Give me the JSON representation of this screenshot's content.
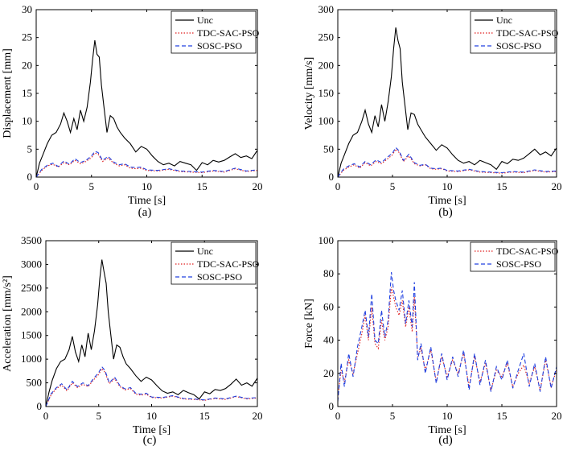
{
  "chart_data": [
    {
      "type": "line",
      "panel": "(a)",
      "xlabel": "Time [s]",
      "ylabel": "Displacement [mm]",
      "xlim": [
        0,
        20
      ],
      "ylim": [
        0,
        30
      ],
      "xticks": [
        "0",
        "5",
        "10",
        "15",
        "20"
      ],
      "yticks": [
        "0",
        "5",
        "10",
        "15",
        "20",
        "25",
        "30"
      ],
      "legend": "top-right",
      "series": [
        {
          "name": "Unc",
          "color": "#000000",
          "dash": "solid",
          "x": [
            0,
            0.3,
            0.6,
            1,
            1.4,
            1.8,
            2.2,
            2.5,
            2.8,
            3.1,
            3.4,
            3.7,
            4,
            4.3,
            4.6,
            4.9,
            5.1,
            5.3,
            5.5,
            5.7,
            5.9,
            6.1,
            6.4,
            6.7,
            7,
            7.3,
            7.6,
            8,
            8.5,
            9,
            9.5,
            10,
            10.5,
            11,
            11.5,
            12,
            12.5,
            13,
            13.5,
            14,
            14.5,
            15,
            15.5,
            16,
            16.5,
            17,
            17.5,
            18,
            18.5,
            19,
            19.5,
            20
          ],
          "y": [
            0,
            2.5,
            4,
            6,
            7.5,
            8,
            9.5,
            11.5,
            10,
            8,
            10.5,
            8.5,
            12,
            10,
            12.5,
            17,
            21,
            24.5,
            22,
            21.5,
            16.5,
            13,
            8,
            11,
            10.5,
            9,
            8,
            7,
            6,
            4.5,
            5.5,
            5,
            3.8,
            2.8,
            2.2,
            2.5,
            2,
            2.8,
            2.5,
            2.2,
            1.2,
            2.6,
            2.2,
            3,
            2.7,
            3,
            3.6,
            4.2,
            3.5,
            3.8,
            3.3,
            4.8
          ]
        },
        {
          "name": "TDC-SAC-PSO",
          "color": "#e02020",
          "dash": "dot",
          "x": [
            0,
            0.5,
            1,
            1.5,
            2,
            2.5,
            3,
            3.5,
            4,
            4.5,
            5,
            5.3,
            5.6,
            6,
            6.5,
            7,
            7.5,
            8,
            8.5,
            9,
            9.5,
            10,
            11,
            12,
            13,
            14,
            15,
            16,
            17,
            18,
            19,
            20
          ],
          "y": [
            0,
            1.2,
            2,
            2.3,
            1.8,
            2.6,
            2.2,
            3,
            2.4,
            2.8,
            3.5,
            4.3,
            4.1,
            2.8,
            3.4,
            2.5,
            2,
            2.2,
            1.6,
            1.5,
            1.6,
            1.2,
            1.1,
            1.4,
            1,
            0.9,
            0.8,
            1.1,
            0.9,
            1.5,
            1,
            1.2
          ]
        },
        {
          "name": "SOSC-PSO",
          "color": "#2040e0",
          "dash": "dash",
          "x": [
            0,
            0.5,
            1,
            1.5,
            2,
            2.5,
            3,
            3.5,
            4,
            4.5,
            5,
            5.3,
            5.6,
            6,
            6.5,
            7,
            7.5,
            8,
            8.5,
            9,
            9.5,
            10,
            11,
            12,
            13,
            14,
            15,
            16,
            17,
            18,
            19,
            20
          ],
          "y": [
            0,
            1.4,
            2.1,
            2.5,
            1.9,
            2.9,
            2.3,
            3.3,
            2.6,
            3,
            3.8,
            4.6,
            4.4,
            3,
            3.7,
            2.7,
            2.2,
            2.4,
            1.8,
            1.7,
            1.8,
            1.3,
            1.2,
            1.5,
            1.1,
            1,
            0.9,
            1.2,
            1,
            1.6,
            1.1,
            1.3
          ]
        }
      ]
    },
    {
      "type": "line",
      "panel": "(b)",
      "xlabel": "Time [s]",
      "ylabel": "Velocity [mm/s]",
      "xlim": [
        0,
        20
      ],
      "ylim": [
        0,
        300
      ],
      "xticks": [
        "0",
        "5",
        "10",
        "15",
        "20"
      ],
      "yticks": [
        "0",
        "50",
        "100",
        "150",
        "200",
        "250",
        "300"
      ],
      "legend": "top-right",
      "series": [
        {
          "name": "Unc",
          "color": "#000000",
          "dash": "solid",
          "x": [
            0,
            0.3,
            0.6,
            1,
            1.4,
            1.8,
            2.2,
            2.5,
            2.8,
            3.1,
            3.4,
            3.7,
            4,
            4.3,
            4.6,
            4.9,
            5.1,
            5.3,
            5.5,
            5.7,
            5.9,
            6.1,
            6.4,
            6.7,
            7,
            7.3,
            7.6,
            8,
            8.5,
            9,
            9.5,
            10,
            10.5,
            11,
            11.5,
            12,
            12.5,
            13,
            13.5,
            14,
            14.5,
            15,
            15.5,
            16,
            16.5,
            17,
            17.5,
            18,
            18.5,
            19,
            19.5,
            20
          ],
          "y": [
            0,
            25,
            40,
            60,
            75,
            80,
            100,
            120,
            95,
            80,
            110,
            90,
            130,
            100,
            135,
            180,
            230,
            268,
            245,
            230,
            170,
            135,
            85,
            115,
            112,
            95,
            85,
            72,
            60,
            48,
            58,
            52,
            40,
            30,
            25,
            28,
            22,
            30,
            26,
            22,
            14,
            28,
            24,
            32,
            30,
            34,
            42,
            50,
            40,
            45,
            38,
            52
          ]
        },
        {
          "name": "TDC-SAC-PSO",
          "color": "#e02020",
          "dash": "dot",
          "x": [
            0,
            0.5,
            1,
            1.5,
            2,
            2.5,
            3,
            3.5,
            4,
            4.5,
            5,
            5.3,
            5.6,
            6,
            6.5,
            7,
            7.5,
            8,
            8.5,
            9,
            9.5,
            10,
            11,
            12,
            13,
            14,
            15,
            16,
            17,
            18,
            19,
            20
          ],
          "y": [
            0,
            12,
            18,
            22,
            16,
            26,
            20,
            28,
            24,
            32,
            40,
            50,
            44,
            28,
            38,
            24,
            20,
            22,
            15,
            14,
            15,
            11,
            10,
            13,
            9,
            8,
            7,
            9,
            8,
            12,
            9,
            10
          ]
        },
        {
          "name": "SOSC-PSO",
          "color": "#2040e0",
          "dash": "dash",
          "x": [
            0,
            0.5,
            1,
            1.5,
            2,
            2.5,
            3,
            3.5,
            4,
            4.5,
            5,
            5.3,
            5.6,
            6,
            6.5,
            7,
            7.5,
            8,
            8.5,
            9,
            9.5,
            10,
            11,
            12,
            13,
            14,
            15,
            16,
            17,
            18,
            19,
            20
          ],
          "y": [
            0,
            14,
            20,
            24,
            18,
            28,
            22,
            31,
            26,
            35,
            43,
            53,
            47,
            30,
            41,
            26,
            21,
            23,
            16,
            15,
            16,
            12,
            11,
            14,
            10,
            9,
            8,
            10,
            9,
            13,
            10,
            11
          ]
        }
      ]
    },
    {
      "type": "line",
      "panel": "(c)",
      "xlabel": "Time [s]",
      "ylabel": "Acceleration [mm/s²]",
      "xlim": [
        0,
        20
      ],
      "ylim": [
        0,
        3500
      ],
      "xticks": [
        "0",
        "5",
        "10",
        "15",
        "20"
      ],
      "yticks": [
        "0",
        "500",
        "1000",
        "1500",
        "2000",
        "2500",
        "3000",
        "3500"
      ],
      "legend": "top-right",
      "series": [
        {
          "name": "Unc",
          "color": "#000000",
          "dash": "solid",
          "x": [
            0,
            0.3,
            0.6,
            1,
            1.4,
            1.8,
            2.2,
            2.5,
            2.8,
            3.1,
            3.4,
            3.7,
            4,
            4.3,
            4.6,
            4.9,
            5.1,
            5.3,
            5.5,
            5.7,
            5.9,
            6.1,
            6.4,
            6.7,
            7,
            7.3,
            7.6,
            8,
            8.5,
            9,
            9.5,
            10,
            10.5,
            11,
            11.5,
            12,
            12.5,
            13,
            13.5,
            14,
            14.5,
            15,
            15.5,
            16,
            16.5,
            17,
            17.5,
            18,
            18.5,
            19,
            19.5,
            20
          ],
          "y": [
            0,
            300,
            550,
            800,
            950,
            1000,
            1200,
            1480,
            1150,
            950,
            1300,
            1050,
            1550,
            1200,
            1600,
            2150,
            2700,
            3100,
            2850,
            2600,
            2000,
            1600,
            1000,
            1300,
            1250,
            1050,
            900,
            800,
            650,
            530,
            620,
            560,
            440,
            330,
            280,
            310,
            250,
            340,
            290,
            250,
            160,
            310,
            270,
            360,
            340,
            380,
            470,
            580,
            450,
            500,
            430,
            600
          ]
        },
        {
          "name": "TDC-SAC-PSO",
          "color": "#e02020",
          "dash": "dot",
          "x": [
            0,
            0.5,
            1,
            1.5,
            2,
            2.5,
            3,
            3.5,
            4,
            4.5,
            5,
            5.3,
            5.6,
            6,
            6.5,
            7,
            7.5,
            8,
            8.5,
            9,
            9.5,
            10,
            11,
            12,
            13,
            14,
            15,
            16,
            17,
            18,
            19,
            20
          ],
          "y": [
            0,
            250,
            380,
            450,
            330,
            500,
            400,
            470,
            420,
            560,
            680,
            800,
            720,
            480,
            590,
            420,
            350,
            380,
            260,
            240,
            260,
            190,
            180,
            220,
            160,
            150,
            130,
            170,
            150,
            210,
            160,
            180
          ]
        },
        {
          "name": "SOSC-PSO",
          "color": "#2040e0",
          "dash": "dash",
          "x": [
            0,
            0.5,
            1,
            1.5,
            2,
            2.5,
            3,
            3.5,
            4,
            4.5,
            5,
            5.3,
            5.6,
            6,
            6.5,
            7,
            7.5,
            8,
            8.5,
            9,
            9.5,
            10,
            11,
            12,
            13,
            14,
            15,
            16,
            17,
            18,
            19,
            20
          ],
          "y": [
            0,
            270,
            400,
            480,
            350,
            530,
            420,
            500,
            440,
            590,
            720,
            840,
            760,
            500,
            620,
            440,
            370,
            400,
            280,
            260,
            280,
            200,
            190,
            230,
            170,
            160,
            140,
            180,
            160,
            220,
            170,
            190
          ]
        }
      ]
    },
    {
      "type": "line",
      "panel": "(d)",
      "xlabel": "Time [s]",
      "ylabel": "Force [kN]",
      "xlim": [
        0,
        20
      ],
      "ylim": [
        0,
        100
      ],
      "xticks": [
        "0",
        "5",
        "10",
        "15",
        "20"
      ],
      "yticks": [
        "0",
        "20",
        "40",
        "60",
        "80",
        "100"
      ],
      "legend": "top-right",
      "series": [
        {
          "name": "TDC-SAC-PSO",
          "color": "#e02020",
          "dash": "dot",
          "x": [
            0,
            0.3,
            0.6,
            1,
            1.4,
            1.8,
            2.2,
            2.5,
            2.8,
            3.1,
            3.4,
            3.7,
            4,
            4.3,
            4.6,
            4.9,
            5.1,
            5.3,
            5.6,
            5.9,
            6.2,
            6.5,
            6.8,
            7,
            7.3,
            7.6,
            8,
            8.5,
            9,
            9.5,
            10,
            10.5,
            11,
            11.5,
            12,
            12.5,
            13,
            13.5,
            14,
            14.5,
            15,
            15.5,
            16,
            16.5,
            17,
            17.5,
            18,
            18.5,
            19,
            19.5,
            20
          ],
          "y": [
            5,
            22,
            15,
            28,
            20,
            32,
            44,
            55,
            40,
            60,
            38,
            35,
            52,
            40,
            48,
            72,
            66,
            60,
            55,
            64,
            48,
            60,
            45,
            66,
            30,
            35,
            22,
            34,
            15,
            30,
            18,
            28,
            20,
            32,
            12,
            30,
            15,
            26,
            10,
            22,
            18,
            26,
            12,
            20,
            25,
            14,
            24,
            10,
            28,
            12,
            22
          ]
        },
        {
          "name": "SOSC-PSO",
          "color": "#2040e0",
          "dash": "dash",
          "x": [
            0,
            0.3,
            0.6,
            1,
            1.4,
            1.8,
            2.2,
            2.5,
            2.8,
            3.1,
            3.4,
            3.7,
            4,
            4.3,
            4.6,
            4.9,
            5.1,
            5.3,
            5.6,
            5.9,
            6.2,
            6.5,
            6.8,
            7,
            7.3,
            7.6,
            8,
            8.5,
            9,
            9.5,
            10,
            10.5,
            11,
            11.5,
            12,
            12.5,
            13,
            13.5,
            14,
            14.5,
            15,
            15.5,
            16,
            16.5,
            17,
            17.5,
            18,
            18.5,
            19,
            19.5,
            20
          ],
          "y": [
            3,
            26,
            12,
            32,
            18,
            36,
            48,
            58,
            42,
            68,
            40,
            38,
            58,
            42,
            52,
            81,
            70,
            64,
            58,
            70,
            50,
            64,
            48,
            75,
            28,
            38,
            20,
            36,
            14,
            32,
            16,
            30,
            18,
            34,
            10,
            32,
            13,
            28,
            9,
            24,
            16,
            28,
            11,
            22,
            32,
            12,
            26,
            9,
            30,
            11,
            24
          ]
        }
      ]
    }
  ],
  "captions": [
    "(a)",
    "(b)",
    "(c)",
    "(d)"
  ]
}
